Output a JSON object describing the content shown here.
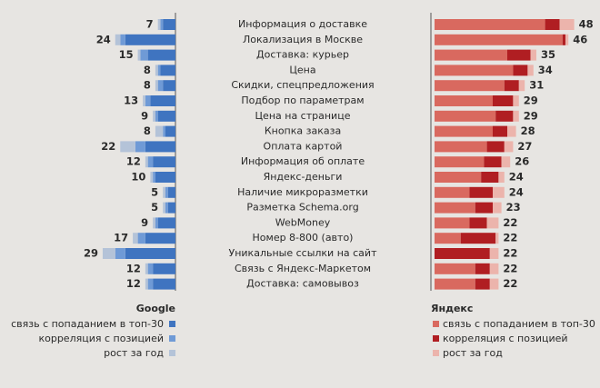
{
  "chart_data": {
    "type": "butterfly",
    "categories": [
      "Информация о доставке",
      "Локализация в Москве",
      "Доставка: курьер",
      "Цена",
      "Скидки, спецпредложения",
      "Подбор по параметрам",
      "Цена на странице",
      "Кнопка заказа",
      "Оплата картой",
      "Информация об оплате",
      "Яндекс-деньги",
      "Наличие микроразметки",
      "Разметка Schema.org",
      "WebMoney",
      "Номер 8-800 (авто)",
      "Уникальные ссылки на сайт",
      "Связь с Яндекс-Маркетом",
      "Доставка: самовывоз"
    ],
    "left": {
      "title": "Google",
      "title_color": "#3f74c0",
      "label_color": "#3f74c0",
      "totals": [
        7,
        24,
        15,
        8,
        8,
        13,
        9,
        8,
        22,
        12,
        10,
        5,
        5,
        9,
        17,
        29,
        12,
        12
      ],
      "series": [
        {
          "name": "связь с попаданием в топ-30",
          "color": "#3f74c0",
          "values": [
            5,
            20,
            11,
            6,
            5,
            10,
            7,
            4,
            12,
            9,
            8,
            3,
            3,
            7,
            12,
            20,
            9,
            9
          ]
        },
        {
          "name": "корреляция с позицией",
          "color": "#6f9ad6",
          "values": [
            1,
            2,
            3,
            1,
            2,
            2,
            1,
            1,
            4,
            2,
            1,
            1,
            1,
            1,
            3,
            4,
            2,
            2
          ]
        },
        {
          "name": "рост за год",
          "color": "#b4c3d8",
          "values": [
            1,
            2,
            1,
            1,
            1,
            1,
            1,
            3,
            6,
            1,
            1,
            1,
            1,
            1,
            2,
            5,
            1,
            1
          ]
        }
      ]
    },
    "right": {
      "title": "Яндекс",
      "title_color": "#c0392b",
      "label_color": "#c0392b",
      "totals": [
        48,
        46,
        35,
        34,
        31,
        29,
        29,
        28,
        27,
        26,
        24,
        24,
        23,
        22,
        22,
        22,
        22,
        22
      ],
      "series": [
        {
          "name": "связь с попаданием в топ-30",
          "color": "#d9695f",
          "values": [
            38,
            44,
            25,
            27,
            24,
            20,
            21,
            20,
            18,
            17,
            16,
            12,
            14,
            12,
            9,
            0,
            14,
            14
          ]
        },
        {
          "name": "корреляция с позицией",
          "color": "#b01e22",
          "values": [
            5,
            1,
            8,
            5,
            5,
            7,
            6,
            5,
            6,
            6,
            6,
            8,
            6,
            6,
            12,
            19,
            5,
            5
          ]
        },
        {
          "name": "рост за год",
          "color": "#ecb4ac",
          "values": [
            5,
            1,
            2,
            2,
            2,
            2,
            2,
            3,
            3,
            3,
            2,
            4,
            3,
            4,
            1,
            3,
            3,
            3
          ]
        }
      ]
    }
  }
}
